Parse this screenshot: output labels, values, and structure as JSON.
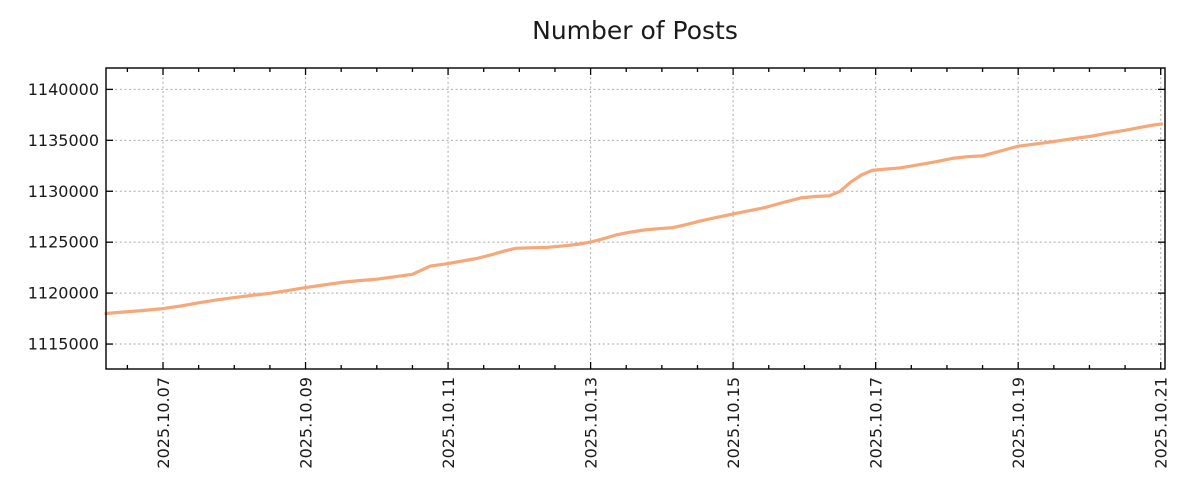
{
  "figure": {
    "title": "Number of Posts"
  },
  "colors": {
    "background": "#ffffff",
    "grid": "#a9a9a9",
    "axis": "#000000",
    "text": "#1a1a1a",
    "line": "#f6a878"
  },
  "chart_data": {
    "type": "line",
    "title": "Number of Posts",
    "xlabel": "",
    "ylabel": "",
    "grid": true,
    "legend_position": "none",
    "xlim": [
      6.2,
      21.06
    ],
    "ylim": [
      1112550,
      1142100
    ],
    "x_minor_step": 0.5,
    "x_ticks": [
      {
        "value": 7,
        "label": "2025.10.07"
      },
      {
        "value": 9,
        "label": "2025.10.09"
      },
      {
        "value": 11,
        "label": "2025.10.11"
      },
      {
        "value": 13,
        "label": "2025.10.13"
      },
      {
        "value": 15,
        "label": "2025.10.15"
      },
      {
        "value": 17,
        "label": "2025.10.17"
      },
      {
        "value": 19,
        "label": "2025.10.19"
      },
      {
        "value": 21,
        "label": "2025.10.21"
      }
    ],
    "y_ticks": [
      {
        "value": 1115000,
        "label": "1115000"
      },
      {
        "value": 1120000,
        "label": "1120000"
      },
      {
        "value": 1125000,
        "label": "1125000"
      },
      {
        "value": 1130000,
        "label": "1130000"
      },
      {
        "value": 1135000,
        "label": "1135000"
      },
      {
        "value": 1140000,
        "label": "1140000"
      }
    ],
    "series": [
      {
        "name": "Number of Posts",
        "color": "#f6a878",
        "points": [
          [
            6.2,
            1118000
          ],
          [
            6.45,
            1118150
          ],
          [
            6.7,
            1118280
          ],
          [
            7.0,
            1118480
          ],
          [
            7.25,
            1118730
          ],
          [
            7.5,
            1119050
          ],
          [
            7.75,
            1119330
          ],
          [
            8.0,
            1119560
          ],
          [
            8.25,
            1119790
          ],
          [
            8.5,
            1119980
          ],
          [
            8.75,
            1120250
          ],
          [
            9.0,
            1120540
          ],
          [
            9.25,
            1120800
          ],
          [
            9.5,
            1121050
          ],
          [
            9.75,
            1121230
          ],
          [
            10.0,
            1121370
          ],
          [
            10.25,
            1121600
          ],
          [
            10.5,
            1121850
          ],
          [
            10.75,
            1122650
          ],
          [
            11.0,
            1122900
          ],
          [
            11.2,
            1123150
          ],
          [
            11.4,
            1123400
          ],
          [
            11.6,
            1123750
          ],
          [
            11.8,
            1124150
          ],
          [
            11.95,
            1124400
          ],
          [
            12.15,
            1124450
          ],
          [
            12.4,
            1124500
          ],
          [
            12.65,
            1124650
          ],
          [
            12.85,
            1124820
          ],
          [
            13.0,
            1125020
          ],
          [
            13.15,
            1125280
          ],
          [
            13.35,
            1125700
          ],
          [
            13.55,
            1125980
          ],
          [
            13.75,
            1126200
          ],
          [
            13.95,
            1126320
          ],
          [
            14.15,
            1126420
          ],
          [
            14.35,
            1126750
          ],
          [
            14.55,
            1127100
          ],
          [
            14.75,
            1127400
          ],
          [
            15.0,
            1127780
          ],
          [
            15.2,
            1128050
          ],
          [
            15.45,
            1128400
          ],
          [
            15.7,
            1128900
          ],
          [
            15.95,
            1129350
          ],
          [
            16.15,
            1129480
          ],
          [
            16.35,
            1129550
          ],
          [
            16.5,
            1130000
          ],
          [
            16.65,
            1130900
          ],
          [
            16.8,
            1131600
          ],
          [
            16.95,
            1132050
          ],
          [
            17.1,
            1132150
          ],
          [
            17.35,
            1132300
          ],
          [
            17.6,
            1132600
          ],
          [
            17.85,
            1132900
          ],
          [
            18.1,
            1133250
          ],
          [
            18.3,
            1133400
          ],
          [
            18.5,
            1133480
          ],
          [
            18.75,
            1133950
          ],
          [
            19.0,
            1134420
          ],
          [
            19.25,
            1134650
          ],
          [
            19.5,
            1134880
          ],
          [
            19.75,
            1135150
          ],
          [
            20.0,
            1135380
          ],
          [
            20.25,
            1135700
          ],
          [
            20.5,
            1135980
          ],
          [
            20.7,
            1136250
          ],
          [
            20.9,
            1136500
          ],
          [
            21.01,
            1136600
          ]
        ]
      }
    ]
  }
}
